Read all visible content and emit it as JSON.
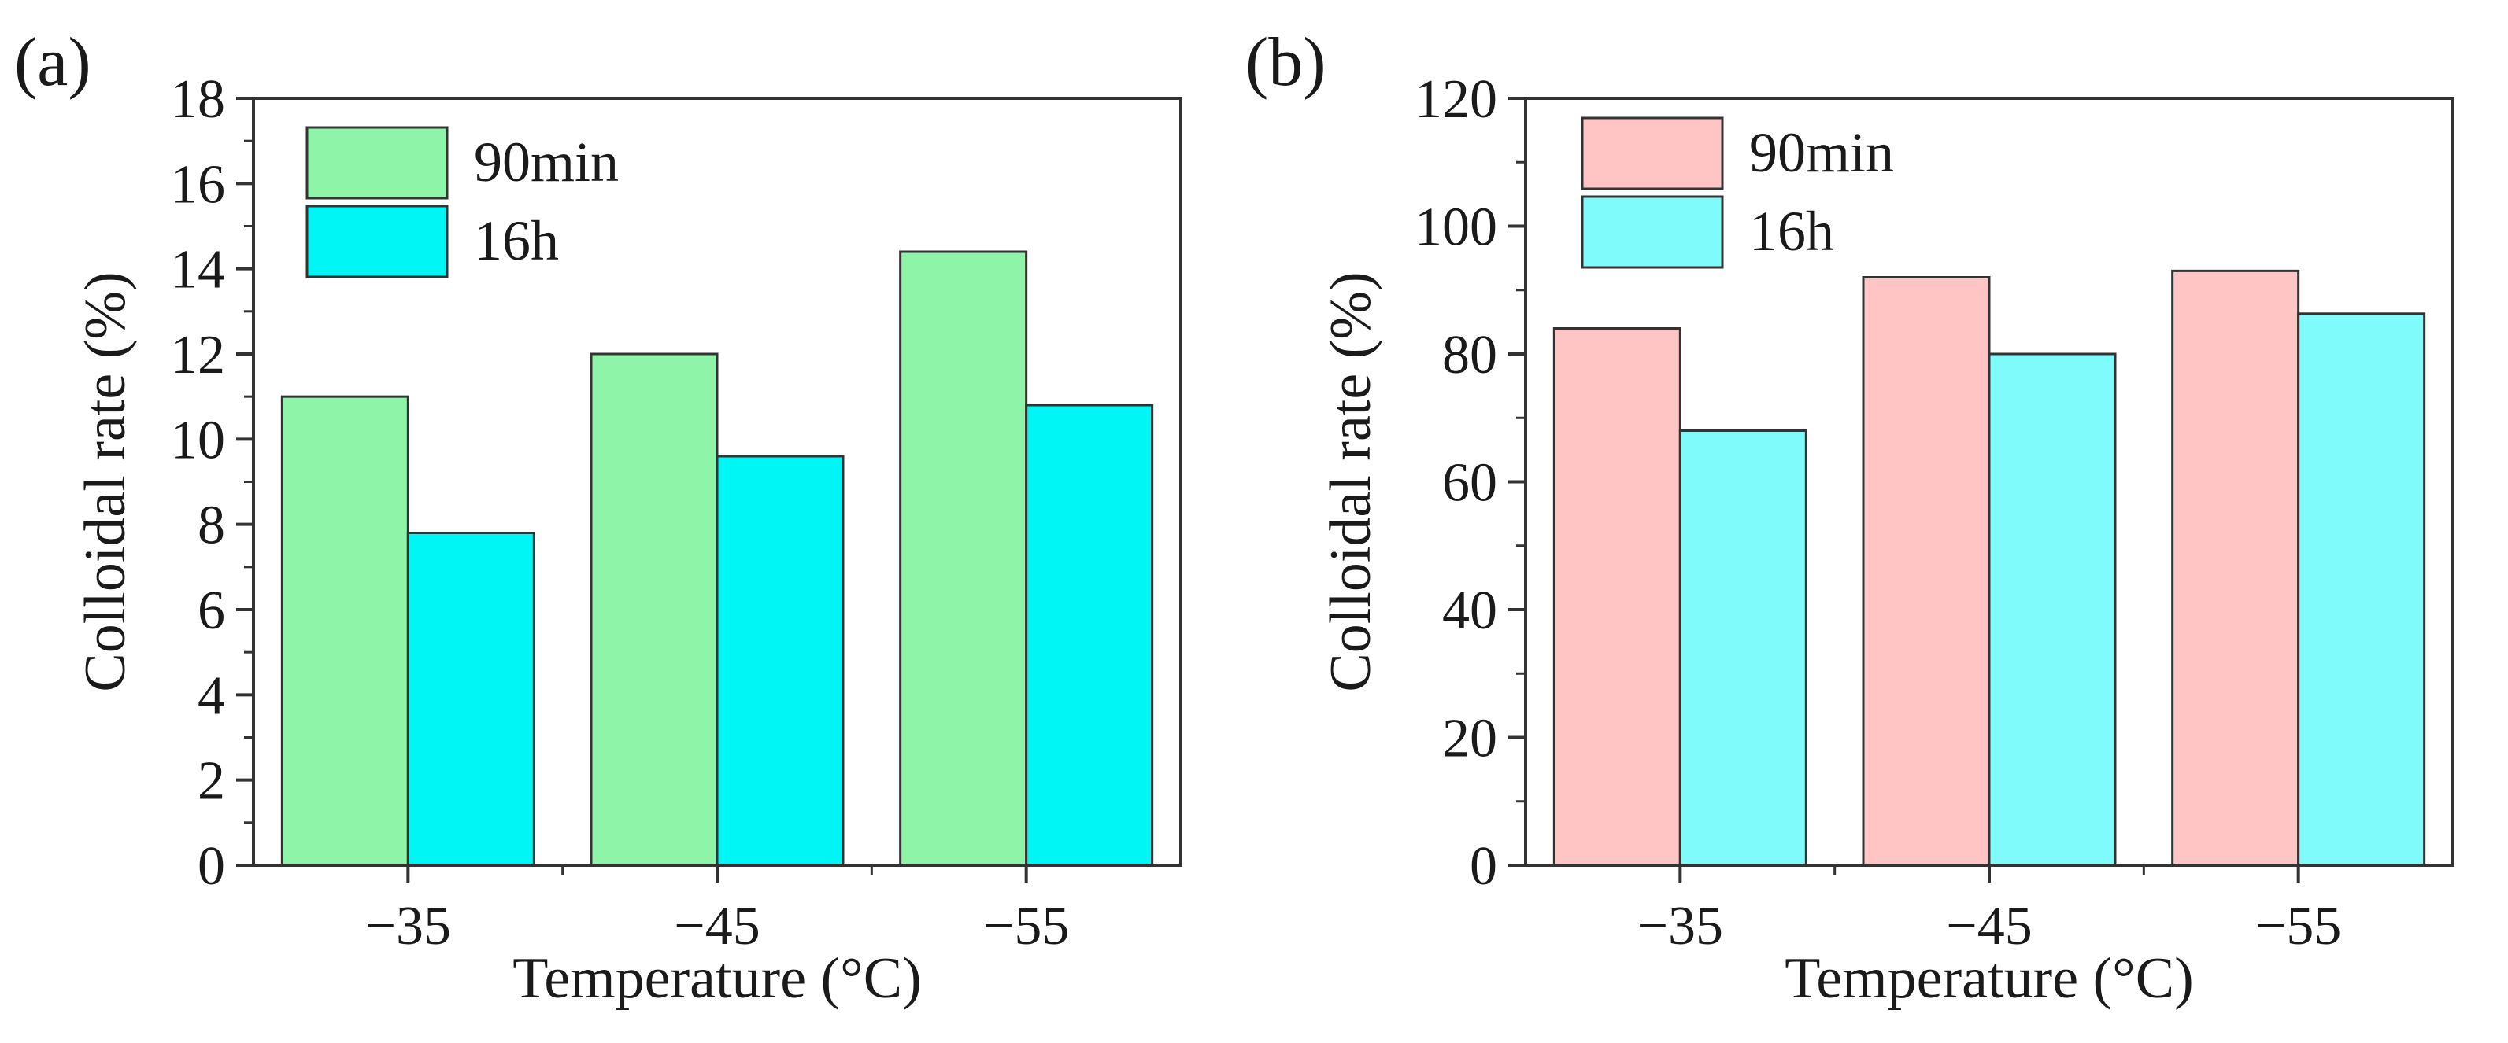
{
  "chart_data": [
    {
      "panel": "(a)",
      "type": "bar",
      "categories": [
        "−35",
        "−45",
        "−55"
      ],
      "series": [
        {
          "name": "90min",
          "color": "#8ef5a8",
          "values": [
            11.0,
            12.0,
            14.4
          ]
        },
        {
          "name": "16h",
          "color": "#00f5f5",
          "values": [
            7.8,
            9.6,
            10.8
          ]
        }
      ],
      "title": "",
      "xlabel": "Temperature (°C)",
      "ylabel": "Colloidal rate (%)",
      "ylim": [
        0,
        18
      ],
      "yticks": [
        0,
        2,
        4,
        6,
        8,
        10,
        12,
        14,
        16,
        18
      ],
      "legend_position": "top-left",
      "grid": false
    },
    {
      "panel": "(b)",
      "type": "bar",
      "categories": [
        "−35",
        "−45",
        "−55"
      ],
      "series": [
        {
          "name": "90min",
          "color": "#ffc4c4",
          "values": [
            84,
            92,
            93
          ]
        },
        {
          "name": "16h",
          "color": "#80fbfb",
          "values": [
            68,
            80,
            86.3
          ]
        }
      ],
      "title": "",
      "xlabel": "Temperature (°C)",
      "ylabel": "Colloidal rate (%)",
      "ylim": [
        0,
        120
      ],
      "yticks": [
        0,
        20,
        40,
        60,
        80,
        100,
        120
      ],
      "legend_position": "top-left",
      "grid": false
    }
  ]
}
